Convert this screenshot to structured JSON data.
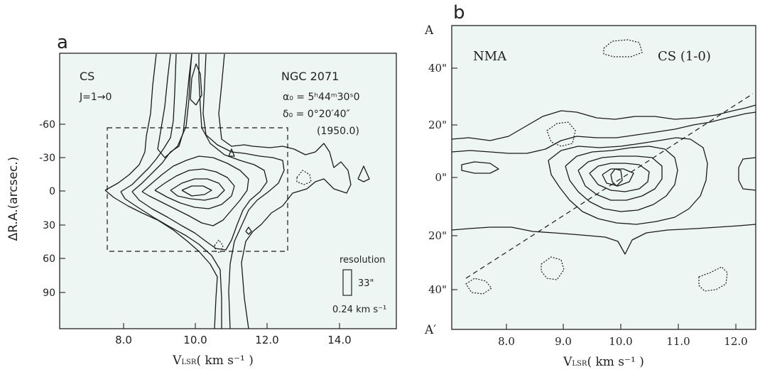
{
  "panel_a": {
    "letter": "a",
    "molecule": "CS",
    "transition": "J=1→0",
    "source": "NGC 2071",
    "alpha": "α₀ = 5ʰ44ᵐ30ˢ0",
    "delta": "δ₀ = 0°20′40″",
    "epoch": "(1950.0)",
    "ylabel": "ΔR.A.(arcsec.)",
    "xlabel": "V",
    "xlabel_sub": "LSR",
    "xlabel_unit": "( km s⁻¹ )",
    "resolution_label": "resolution",
    "resolution_beam": "33\"",
    "resolution_vel": "0.24 km s⁻¹"
  },
  "panel_b": {
    "letter": "b",
    "instrument": "NMA",
    "line": "CS (1-0)",
    "top_marker": "A",
    "bottom_marker": "A′",
    "xlabel": "V",
    "xlabel_sub": "LSR",
    "xlabel_unit": "( km s⁻¹ )"
  },
  "chart_data": [
    {
      "type": "contour",
      "panel": "a",
      "x_ticks": [
        "8.0",
        "10.0",
        "12.0",
        "14.0"
      ],
      "x_tick_values": [
        8.0,
        10.0,
        12.0,
        14.0
      ],
      "xlim": [
        6.3,
        15.6
      ],
      "y_ticks": [
        "-60",
        "-30",
        "0",
        "30",
        "60",
        "90"
      ],
      "y_tick_values": [
        -60,
        -30,
        0,
        30,
        60,
        90
      ],
      "ylim": [
        -120,
        120
      ],
      "map_box_velocity": [
        7.6,
        12.4
      ],
      "map_box_offset": [
        -57,
        53
      ],
      "peak_velocity": 10.2,
      "peak_offset": 0
    },
    {
      "type": "contour",
      "panel": "b",
      "x_ticks": [
        "8.0",
        "9.0",
        "10.0",
        "11.0",
        "12.0"
      ],
      "x_tick_values": [
        8.0,
        9.0,
        10.0,
        11.0,
        12.0
      ],
      "xlim": [
        7.1,
        12.3
      ],
      "y_ticks": [
        "40\"",
        "20\"",
        "0\"",
        "20\"",
        "40\""
      ],
      "y_tick_values": [
        40,
        20,
        0,
        -20,
        -40
      ],
      "ylim": [
        -55,
        55
      ],
      "peak_velocity": 9.9,
      "peak_offset": 3
    }
  ]
}
